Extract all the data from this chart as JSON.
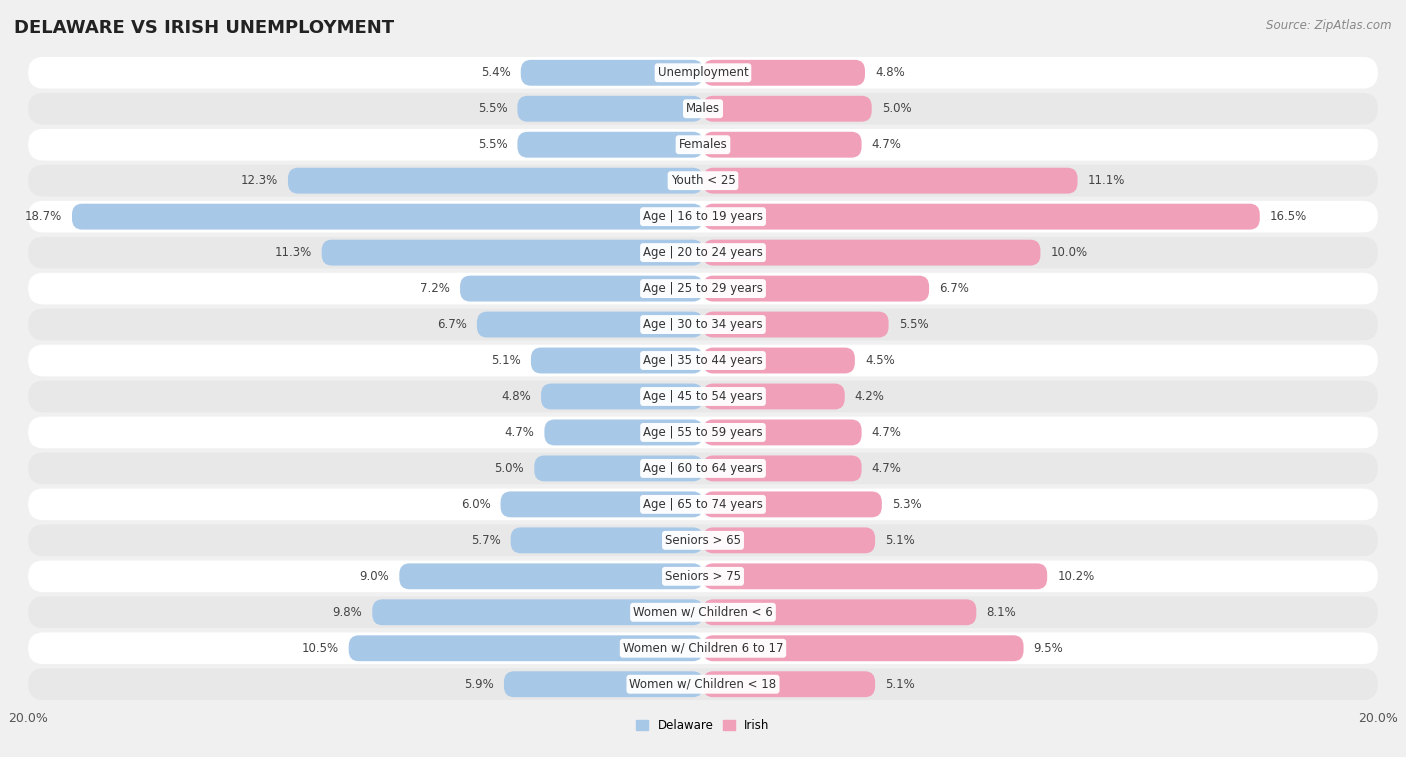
{
  "title": "DELAWARE VS IRISH UNEMPLOYMENT",
  "source": "Source: ZipAtlas.com",
  "categories": [
    "Unemployment",
    "Males",
    "Females",
    "Youth < 25",
    "Age | 16 to 19 years",
    "Age | 20 to 24 years",
    "Age | 25 to 29 years",
    "Age | 30 to 34 years",
    "Age | 35 to 44 years",
    "Age | 45 to 54 years",
    "Age | 55 to 59 years",
    "Age | 60 to 64 years",
    "Age | 65 to 74 years",
    "Seniors > 65",
    "Seniors > 75",
    "Women w/ Children < 6",
    "Women w/ Children 6 to 17",
    "Women w/ Children < 18"
  ],
  "delaware": [
    5.4,
    5.5,
    5.5,
    12.3,
    18.7,
    11.3,
    7.2,
    6.7,
    5.1,
    4.8,
    4.7,
    5.0,
    6.0,
    5.7,
    9.0,
    9.8,
    10.5,
    5.9
  ],
  "irish": [
    4.8,
    5.0,
    4.7,
    11.1,
    16.5,
    10.0,
    6.7,
    5.5,
    4.5,
    4.2,
    4.7,
    4.7,
    5.3,
    5.1,
    10.2,
    8.1,
    9.5,
    5.1
  ],
  "delaware_color": "#a8c8e8",
  "irish_color": "#f0a0b8",
  "delaware_label": "Delaware",
  "irish_label": "Irish",
  "max_val": 20.0,
  "background_color": "#f0f0f0",
  "row_color_light": "#ffffff",
  "row_color_dark": "#e8e8e8",
  "title_fontsize": 13,
  "label_fontsize": 8.5,
  "axis_label_fontsize": 9,
  "source_fontsize": 8.5,
  "value_fontsize": 8.5
}
